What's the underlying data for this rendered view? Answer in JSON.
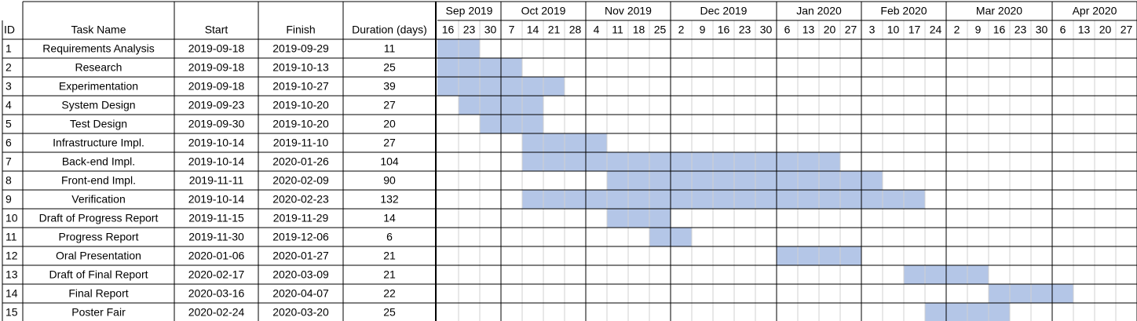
{
  "chart_data": {
    "type": "gantt",
    "columns": [
      "ID",
      "Task Name",
      "Start",
      "Finish",
      "Duration (days)"
    ],
    "months": [
      {
        "label": "Sep 2019",
        "weeks": [
          "16",
          "23",
          "30"
        ]
      },
      {
        "label": "Oct 2019",
        "weeks": [
          "7",
          "14",
          "21",
          "28"
        ]
      },
      {
        "label": "Nov 2019",
        "weeks": [
          "4",
          "11",
          "18",
          "25"
        ]
      },
      {
        "label": "Dec 2019",
        "weeks": [
          "2",
          "9",
          "16",
          "23",
          "30"
        ]
      },
      {
        "label": "Jan 2020",
        "weeks": [
          "6",
          "13",
          "20",
          "27"
        ]
      },
      {
        "label": "Feb 2020",
        "weeks": [
          "3",
          "10",
          "17",
          "24"
        ]
      },
      {
        "label": "Mar 2020",
        "weeks": [
          "2",
          "9",
          "16",
          "23",
          "30"
        ]
      },
      {
        "label": "Apr 2020",
        "weeks": [
          "6",
          "13",
          "20",
          "27"
        ]
      }
    ],
    "tasks": [
      {
        "id": "1",
        "name": "Requirements Analysis",
        "start": "2019-09-18",
        "finish": "2019-09-29",
        "duration": "11"
      },
      {
        "id": "2",
        "name": "Research",
        "start": "2019-09-18",
        "finish": "2019-10-13",
        "duration": "25"
      },
      {
        "id": "3",
        "name": "Experimentation",
        "start": "2019-09-18",
        "finish": "2019-10-27",
        "duration": "39"
      },
      {
        "id": "4",
        "name": "System Design",
        "start": "2019-09-23",
        "finish": "2019-10-20",
        "duration": "27"
      },
      {
        "id": "5",
        "name": "Test Design",
        "start": "2019-09-30",
        "finish": "2019-10-20",
        "duration": "20"
      },
      {
        "id": "6",
        "name": "Infrastructure Impl.",
        "start": "2019-10-14",
        "finish": "2019-11-10",
        "duration": "27"
      },
      {
        "id": "7",
        "name": "Back-end Impl.",
        "start": "2019-10-14",
        "finish": "2020-01-26",
        "duration": "104"
      },
      {
        "id": "8",
        "name": "Front-end Impl.",
        "start": "2019-11-11",
        "finish": "2020-02-09",
        "duration": "90"
      },
      {
        "id": "9",
        "name": "Verification",
        "start": "2019-10-14",
        "finish": "2020-02-23",
        "duration": "132"
      },
      {
        "id": "10",
        "name": "Draft of Progress Report",
        "start": "2019-11-15",
        "finish": "2019-11-29",
        "duration": "14"
      },
      {
        "id": "11",
        "name": "Progress Report",
        "start": "2019-11-30",
        "finish": "2019-12-06",
        "duration": "6"
      },
      {
        "id": "12",
        "name": "Oral Presentation",
        "start": "2020-01-06",
        "finish": "2020-01-27",
        "duration": "21"
      },
      {
        "id": "13",
        "name": "Draft of Final Report",
        "start": "2020-02-17",
        "finish": "2020-03-09",
        "duration": "21"
      },
      {
        "id": "14",
        "name": "Final Report",
        "start": "2020-03-16",
        "finish": "2020-04-07",
        "duration": "22"
      },
      {
        "id": "15",
        "name": "Poster Fair",
        "start": "2020-02-24",
        "finish": "2020-03-20",
        "duration": "25"
      }
    ],
    "colors": {
      "bar": "#b4c6e7",
      "grid": "#d0d0d0",
      "border": "#000000"
    }
  }
}
